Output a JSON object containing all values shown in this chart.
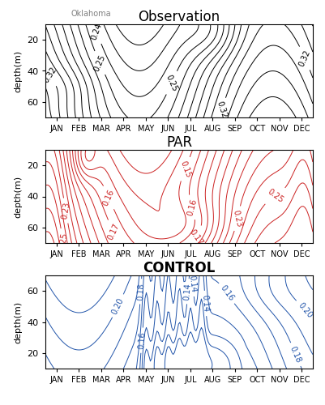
{
  "title_obs": "Observation",
  "title_par": "PAR",
  "title_ctrl": "CONTROL",
  "subtitle": "Oklahoma",
  "months": [
    "JAN",
    "FEB",
    "MAR",
    "APR",
    "MAY",
    "JUN",
    "JUL",
    "AUG",
    "SEP",
    "OCT",
    "NOV",
    "DEC"
  ],
  "ylabel": "depth(m)",
  "obs_color": "black",
  "par_color": "#cc2222",
  "ctrl_color": "#2255aa"
}
